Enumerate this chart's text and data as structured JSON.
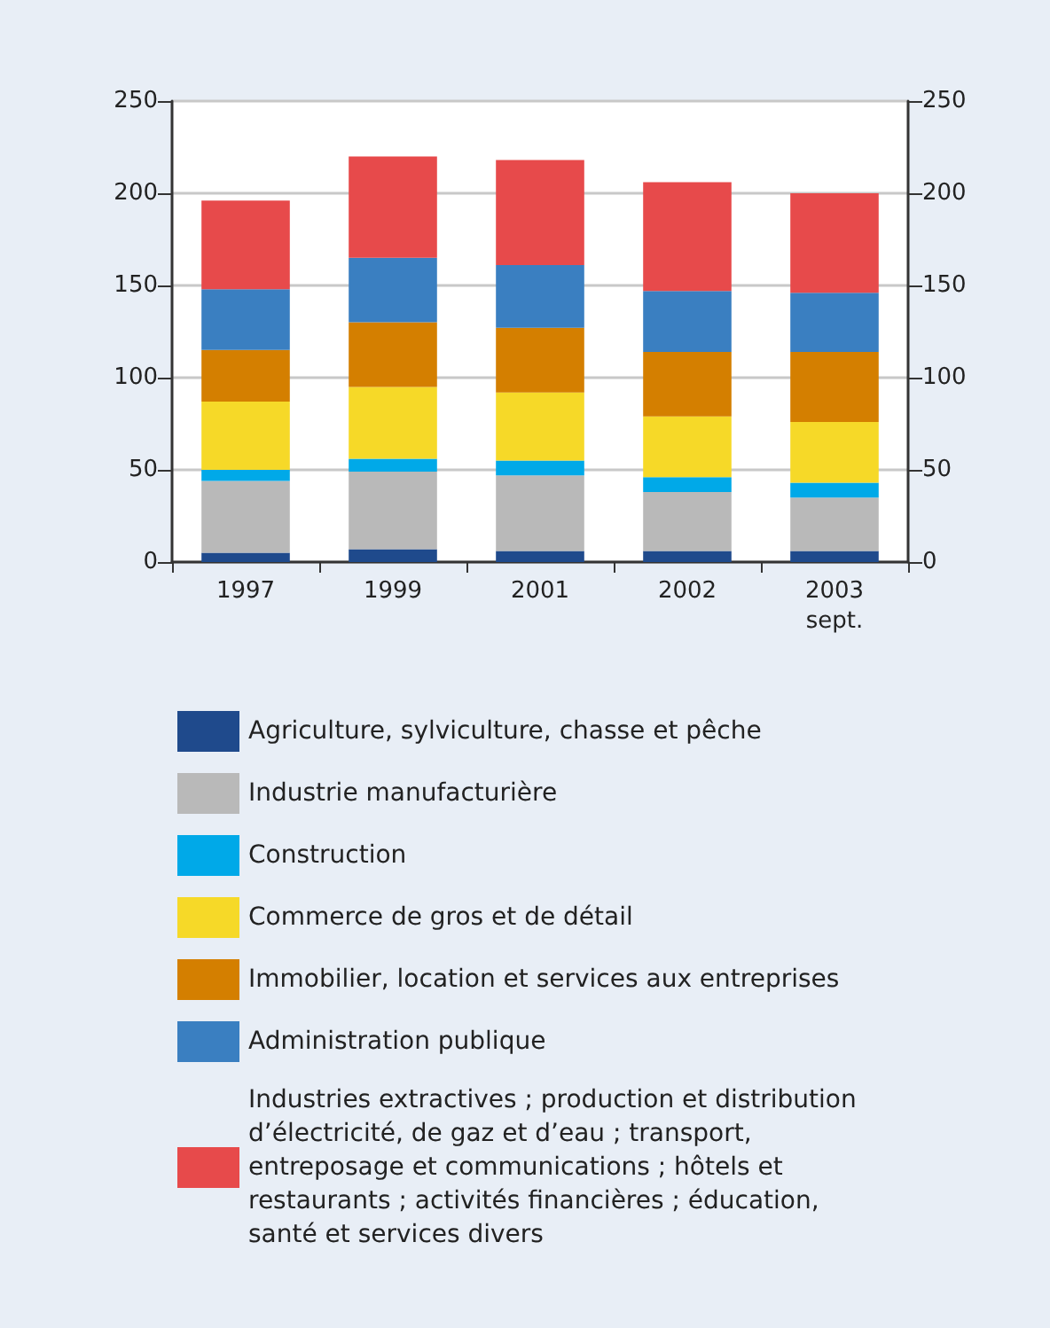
{
  "chart_data": {
    "type": "bar",
    "stacked": true,
    "categories": [
      "1997",
      "1999",
      "2001",
      "2002",
      "2003\nsept."
    ],
    "series": [
      {
        "name": "Agriculture, sylviculture, chasse et pêche",
        "color": "#1f4a8c",
        "values": [
          5,
          7,
          6,
          6,
          6
        ]
      },
      {
        "name": "Industrie manufacturière",
        "color": "#b9b9b9",
        "values": [
          39,
          42,
          41,
          32,
          29
        ]
      },
      {
        "name": "Construction",
        "color": "#00a9e8",
        "values": [
          6,
          7,
          8,
          8,
          8
        ]
      },
      {
        "name": "Commerce de gros et de détail",
        "color": "#f6d928",
        "values": [
          37,
          39,
          37,
          33,
          33
        ]
      },
      {
        "name": "Immobilier, location et services aux entreprises",
        "color": "#d47f00",
        "values": [
          28,
          35,
          35,
          35,
          38
        ]
      },
      {
        "name": "Administration publique",
        "color": "#3a7fc1",
        "values": [
          33,
          35,
          34,
          33,
          32
        ]
      },
      {
        "name": "Industries extractives ; production et distribution d’électricité, de gaz et d’eau ; transport, entreposage et communications ; hôtels et restaurants ; activités financières ; éducation, santé et services divers",
        "color": "#e74a4b",
        "values": [
          48,
          55,
          57,
          59,
          54
        ]
      }
    ],
    "ylim": [
      0,
      250
    ],
    "yticks": [
      0,
      50,
      100,
      150,
      200,
      250
    ],
    "y2lim": [
      0,
      250
    ],
    "y2ticks": [
      0,
      50,
      100,
      150,
      200,
      250
    ],
    "grid": "y",
    "legend": "bottom"
  }
}
